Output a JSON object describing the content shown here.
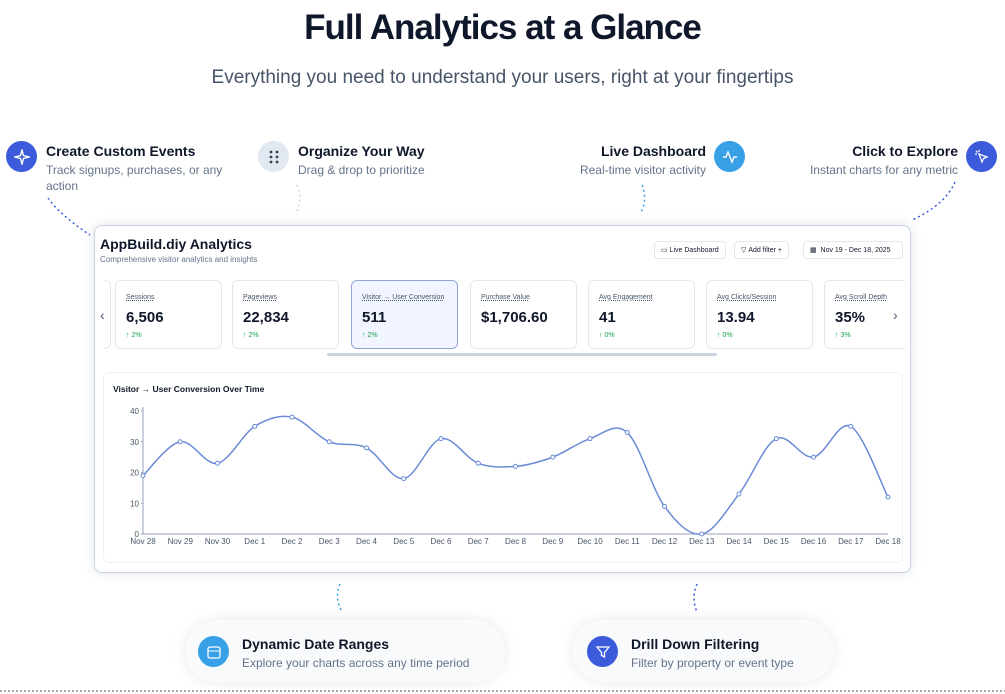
{
  "header": {
    "title": "Full Analytics at a Glance",
    "subtitle": "Everything you need to understand your users, right at your fingertips"
  },
  "features": [
    {
      "title": "Create Custom Events",
      "description": "Track signups, purchases, or any action"
    },
    {
      "title": "Organize Your Way",
      "description": "Drag & drop to prioritize"
    },
    {
      "title": "Live Dashboard",
      "description": "Real-time visitor activity"
    },
    {
      "title": "Click to Explore",
      "description": "Instant charts for any metric"
    },
    {
      "title": "Dynamic Date Ranges",
      "description": "Explore your charts across any time period"
    },
    {
      "title": "Drill Down Filtering",
      "description": "Filter by property or event type"
    }
  ],
  "dashboard": {
    "title": "AppBuild.diy Analytics",
    "subtitle": "Comprehensive visitor analytics and insights",
    "buttons": [
      "Live Dashboard",
      "Add filter +",
      "Nov 19 - Dec 18, 2025"
    ],
    "metrics": [
      {
        "label": "Sessions",
        "value": "6,506",
        "change": "↑ 2%"
      },
      {
        "label": "Pageviews",
        "value": "22,834",
        "change": "↑ 2%"
      },
      {
        "label": "Visitor → User Conversion",
        "value": "511",
        "change": "↑ 2%"
      },
      {
        "label": "Purchase Value",
        "value": "$1,706.60"
      },
      {
        "label": "Avg Engagement",
        "value": "41",
        "change": "↑ 0%"
      },
      {
        "label": "Avg Clicks/Session",
        "value": "13.94",
        "change": "↑ 0%"
      },
      {
        "label": "Avg Scroll Depth",
        "value": "35%",
        "change": "↑ 3%"
      }
    ]
  },
  "chart_data": {
    "type": "line",
    "title": "Visitor → User Conversion Over Time",
    "color": "#6a8bd6",
    "categories": [
      "Nov 28",
      "Nov 29",
      "Nov 30",
      "Dec 1",
      "Dec 2",
      "Dec 3",
      "Dec 4",
      "Dec 5",
      "Dec 6",
      "Dec 7",
      "Dec 8",
      "Dec 9",
      "Dec 10",
      "Dec 11",
      "Dec 12",
      "Dec 13",
      "Dec 14",
      "Dec 15",
      "Dec 16",
      "Dec 17",
      "Dec 18"
    ],
    "values": [
      19,
      30,
      23,
      35,
      38,
      30,
      28,
      18,
      31,
      23,
      22,
      25,
      31,
      33,
      9,
      0,
      13,
      31,
      25,
      35,
      12
    ],
    "ylim": [
      0,
      40
    ],
    "yticks": [
      0,
      10,
      20,
      30,
      40
    ]
  }
}
